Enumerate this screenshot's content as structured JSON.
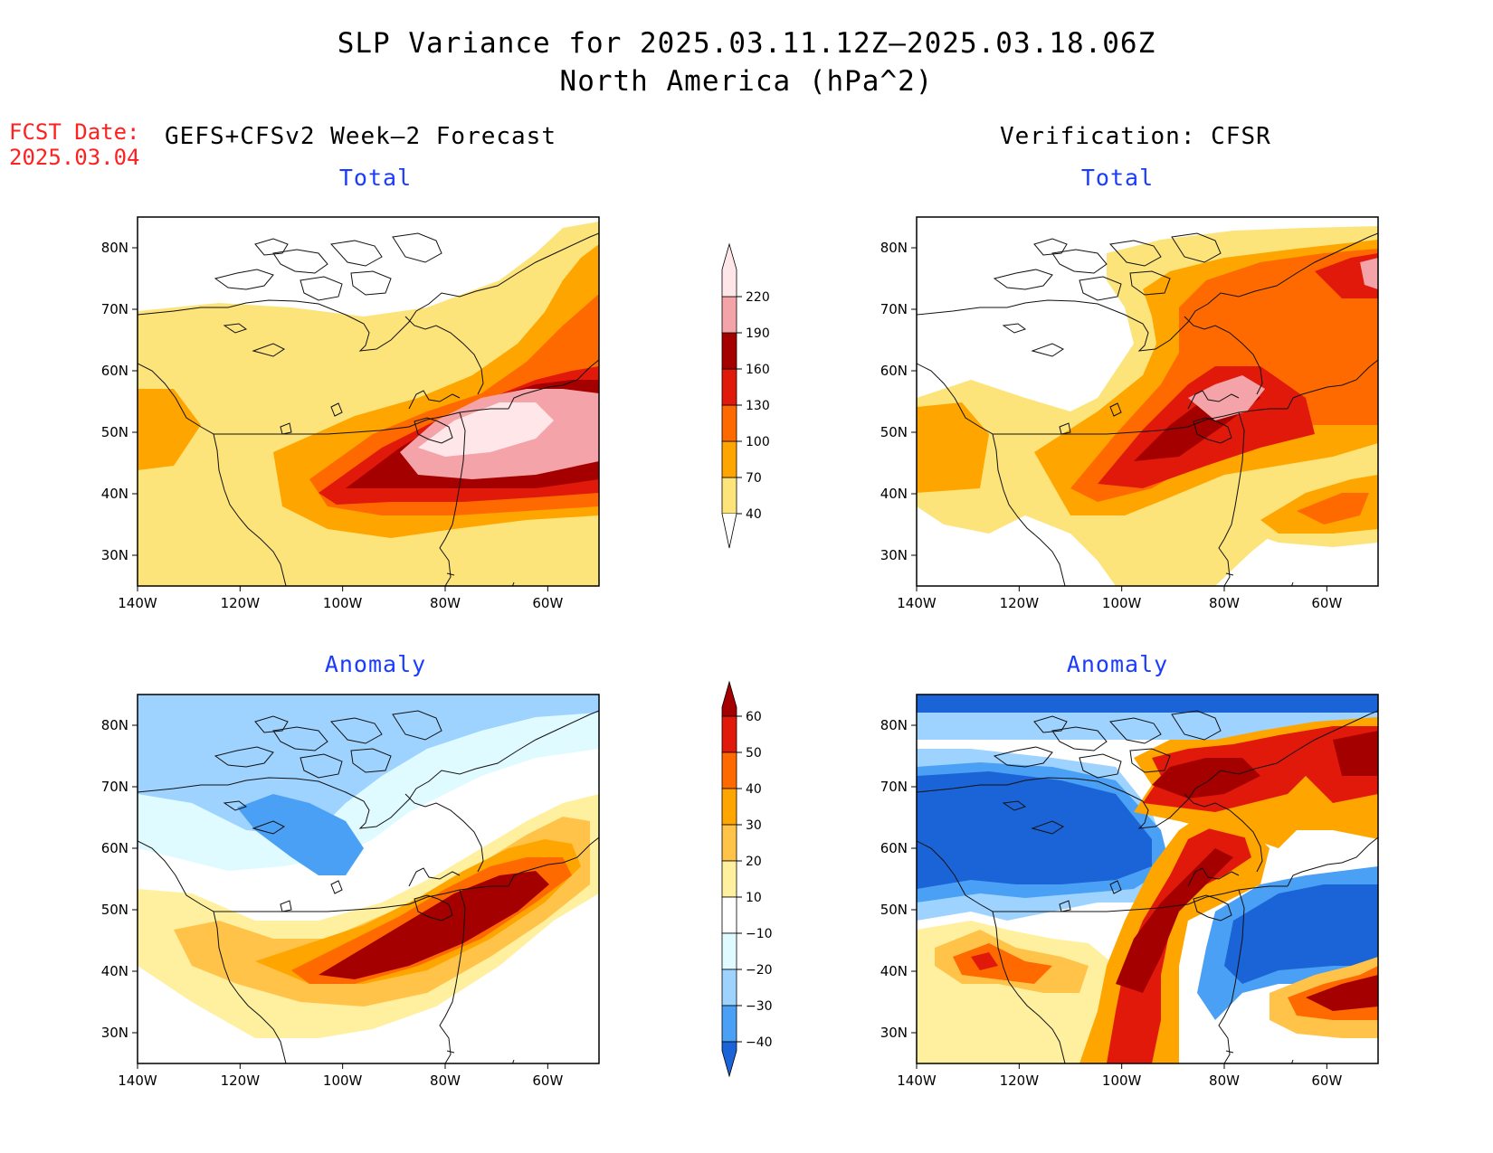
{
  "title": {
    "line1": "SLP Variance for 2025.03.11.12Z–2025.03.18.06Z",
    "line2": "North America (hPa^2)"
  },
  "fcst_date": {
    "label": "FCST Date:",
    "value": "2025.03.04"
  },
  "columns": {
    "left": "GEFS+CFSv2 Week–2 Forecast",
    "right": "Verification: CFSR"
  },
  "panels": {
    "forecast_total": {
      "title": "Total"
    },
    "verif_total": {
      "title": "Total"
    },
    "forecast_anomaly": {
      "title": "Anomaly"
    },
    "verif_anomaly": {
      "title": "Anomaly"
    }
  },
  "axes": {
    "lat_labels": [
      "80N",
      "70N",
      "60N",
      "50N",
      "40N",
      "30N"
    ],
    "lon_labels": [
      "140W",
      "120W",
      "100W",
      "80W",
      "60W"
    ],
    "lat_values": [
      80,
      70,
      60,
      50,
      40,
      30
    ],
    "lon_values": [
      -140,
      -120,
      -100,
      -80,
      -60
    ],
    "lat_range": [
      25,
      85
    ],
    "lon_range": [
      -140,
      -50
    ]
  },
  "colorbar_total": {
    "levels": [
      "40",
      "70",
      "100",
      "130",
      "160",
      "190",
      "220"
    ],
    "colors": [
      "#fde47a",
      "#ffa500",
      "#ff6a00",
      "#e0190b",
      "#a50000",
      "#f4a3a8",
      "#ffe6e8"
    ]
  },
  "colorbar_anomaly": {
    "levels": [
      "60",
      "50",
      "40",
      "30",
      "20",
      "10",
      "−10",
      "−20",
      "−30",
      "−40"
    ],
    "colors": [
      "#a50000",
      "#e0190b",
      "#ff6a00",
      "#ffa500",
      "#ffc34a",
      "#fff0a0",
      "#ffffff",
      "#e0fbff",
      "#9fd3ff",
      "#4aa0f5",
      "#1a64d8"
    ]
  }
}
